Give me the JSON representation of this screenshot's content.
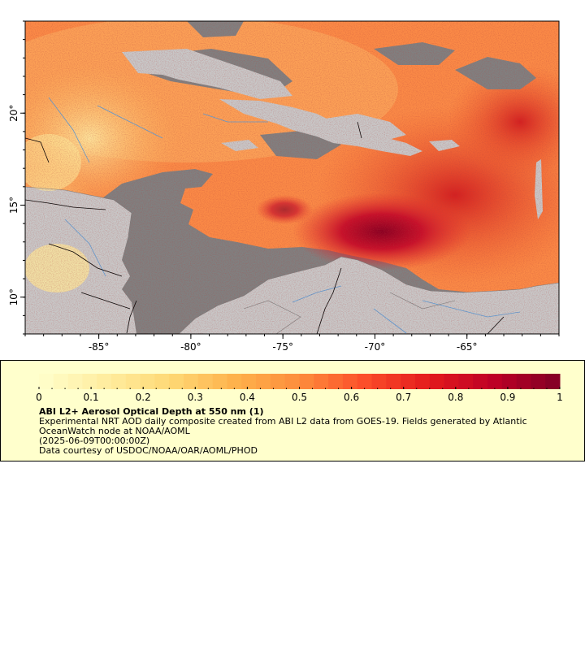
{
  "map": {
    "x_axis": {
      "ticks": [
        {
          "value": -85,
          "label": "-85°"
        },
        {
          "value": -80,
          "label": "-80°"
        },
        {
          "value": -75,
          "label": "-75°"
        },
        {
          "value": -70,
          "label": "-70°"
        },
        {
          "value": -65,
          "label": "-65°"
        }
      ],
      "range": [
        -89,
        -60
      ]
    },
    "y_axis": {
      "ticks": [
        {
          "value": 10,
          "label": "10°"
        },
        {
          "value": 15,
          "label": "15°"
        },
        {
          "value": 20,
          "label": "20°"
        }
      ],
      "range": [
        8,
        25
      ]
    },
    "colors": {
      "land": "#c8c8c8",
      "no_data": "#808080",
      "border": "#000000",
      "river": "#5b9bd5"
    }
  },
  "colorbar": {
    "ticks": [
      "0",
      "0.1",
      "0.2",
      "0.3",
      "0.4",
      "0.5",
      "0.6",
      "0.7",
      "0.8",
      "0.9",
      "1"
    ],
    "colors": [
      "#ffffcc",
      "#ffeda0",
      "#fed976",
      "#feb24c",
      "#fd8d3c",
      "#fc4e2a",
      "#e31a1c",
      "#bd0026",
      "#800026"
    ],
    "range": [
      0,
      1
    ],
    "segments": 36
  },
  "legend": {
    "title": "ABI L2+ Aerosol Optical Depth at 550 nm (1)",
    "desc_line1": "Experimental NRT AOD daily composite created from ABI L2 data from GOES-19. Fields generated by Atlantic",
    "desc_line2": "OceanWatch node at NOAA/AOML",
    "date": "(2025-06-09T00:00:00Z)",
    "credit": "Data courtesy of USDOC/NOAA/OAR/AOML/PHOD"
  }
}
